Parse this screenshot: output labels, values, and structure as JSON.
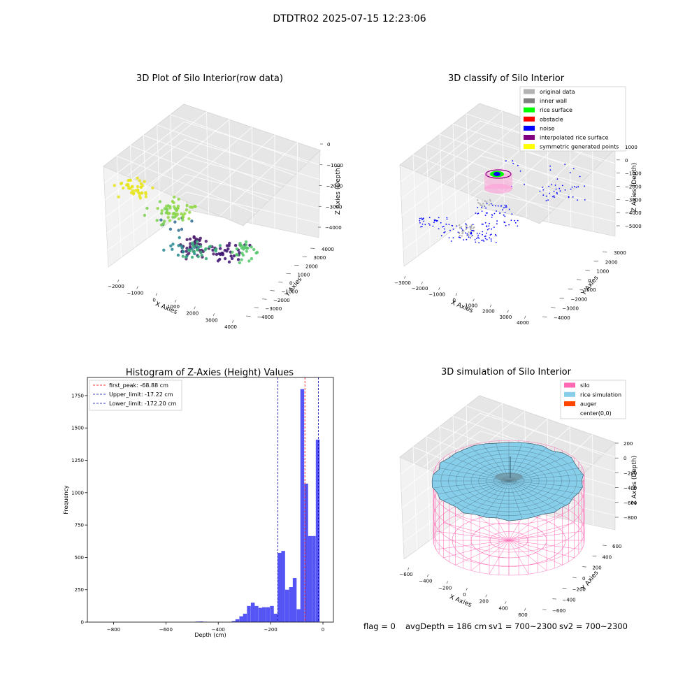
{
  "figure": {
    "suptitle": "DTDTR02 2025-07-15 12:23:06"
  },
  "chart_data": [
    {
      "type": "scatter",
      "title": "3D Plot of Silo Interior(row data)",
      "xlabel": "X Axies",
      "ylabel": "Y Axies",
      "zlabel": "Z Axies (Depth)",
      "x_ticks": [
        "−2000",
        "−1000",
        "0",
        "1000",
        "2000",
        "3000",
        "4000"
      ],
      "y_ticks": [
        "4000",
        "3000",
        "2000",
        "1000",
        "0",
        "−1000",
        "−2000",
        "−3000",
        "−4000"
      ],
      "z_ticks": [
        "0",
        "−1000",
        "−2000",
        "−3000",
        "−4000"
      ],
      "grid": true,
      "colormap": "viridis",
      "clusters": [
        {
          "x": -2300,
          "y": -1500,
          "z": -4200,
          "count": 8,
          "color": "#2f6b8e"
        },
        {
          "x": -1000,
          "y": -600,
          "z": -4300,
          "count": 40,
          "color": "#481668"
        },
        {
          "x": -200,
          "y": -1200,
          "z": -4400,
          "count": 30,
          "color": "#3b0f70"
        },
        {
          "x": -900,
          "y": 300,
          "z": -3800,
          "count": 18,
          "color": "#24878e"
        },
        {
          "x": 300,
          "y": 800,
          "z": -3300,
          "count": 26,
          "color": "#3aaa76"
        },
        {
          "x": -500,
          "y": 1500,
          "z": -1800,
          "count": 22,
          "color": "#7ad151"
        },
        {
          "x": 500,
          "y": 2200,
          "z": -1100,
          "count": 34,
          "color": "#8fd744"
        },
        {
          "x": 2600,
          "y": 1700,
          "z": -2200,
          "count": 26,
          "color": "#52c569"
        },
        {
          "x": -600,
          "y": 2800,
          "z": -300,
          "count": 40,
          "color": "#e6e419"
        }
      ]
    },
    {
      "type": "scatter",
      "title": "3D classify of Silo Interior",
      "xlabel": "X Axies",
      "ylabel": "Y Axies",
      "zlabel": "Z Axies (Depth)",
      "x_ticks": [
        "−3000",
        "−2000",
        "−1000",
        "0",
        "1000",
        "2000",
        "3000",
        "4000"
      ],
      "y_ticks": [
        "3000",
        "2000",
        "1000",
        "0",
        "−1000",
        "−2000",
        "−3000",
        "−4000"
      ],
      "z_ticks": [
        "1000",
        "0",
        "−1000",
        "−2000",
        "−3000",
        "−4000",
        "−5000"
      ],
      "grid": true,
      "legend": {
        "location": "top-right",
        "entries": [
          {
            "label": "original data",
            "color": "#b3b3b3"
          },
          {
            "label": "inner wall",
            "color": "#808080"
          },
          {
            "label": "rice surface",
            "color": "#00ff00"
          },
          {
            "label": "obstacle",
            "color": "#ff0000"
          },
          {
            "label": "noise",
            "color": "#0000ff"
          },
          {
            "label": "interpolated rice surface",
            "color": "#800080"
          },
          {
            "label": "symmetric generated points",
            "color": "#ffff00"
          }
        ]
      }
    },
    {
      "type": "bar",
      "title": "Histogram of Z-Axies (Height) Values",
      "xlabel": "Depth (cm)",
      "ylabel": "Frequency",
      "xlim": [
        -900,
        40
      ],
      "ylim": [
        0,
        1890
      ],
      "x_ticks": [
        -800,
        -600,
        -400,
        -200,
        0
      ],
      "y_ticks": [
        0,
        250,
        500,
        750,
        1000,
        1250,
        1500,
        1750
      ],
      "bin_width": 14.6,
      "bins": [
        {
          "x": -480,
          "value": 4
        },
        {
          "x": -465,
          "value": 5
        },
        {
          "x": -450,
          "value": 3
        },
        {
          "x": -341,
          "value": 8
        },
        {
          "x": -327,
          "value": 22
        },
        {
          "x": -312,
          "value": 45
        },
        {
          "x": -298,
          "value": 65
        },
        {
          "x": -283,
          "value": 125
        },
        {
          "x": -268,
          "value": 150
        },
        {
          "x": -254,
          "value": 125
        },
        {
          "x": -239,
          "value": 110
        },
        {
          "x": -225,
          "value": 115
        },
        {
          "x": -210,
          "value": 115
        },
        {
          "x": -195,
          "value": 125
        },
        {
          "x": -181,
          "value": 65
        },
        {
          "x": -166,
          "value": 535
        },
        {
          "x": -152,
          "value": 550
        },
        {
          "x": -137,
          "value": 250
        },
        {
          "x": -122,
          "value": 270
        },
        {
          "x": -108,
          "value": 340
        },
        {
          "x": -93,
          "value": 100
        },
        {
          "x": -79,
          "value": 1800
        },
        {
          "x": -64,
          "value": 1070
        },
        {
          "x": -50,
          "value": 665
        },
        {
          "x": -35,
          "value": 665
        },
        {
          "x": -20,
          "value": 1410
        }
      ],
      "bar_color": "#5555f5",
      "vlines": [
        {
          "x": -68.88,
          "color": "#ff0000",
          "label": "first_peak: -68.88 cm"
        },
        {
          "x": -17.22,
          "color": "#0000aa",
          "label": "Upper_limit: -17.22 cm"
        },
        {
          "x": -172.2,
          "color": "#0000aa",
          "label": "Lower_limit: -172.20 cm"
        }
      ],
      "legend": "top-left"
    },
    {
      "type": "surface",
      "title": "3D simulation of Silo Interior",
      "xlabel": "X Axies",
      "ylabel": "Y Axies",
      "zlabel": "Z Axies (Depth)",
      "x_ticks": [
        "−600",
        "−400",
        "−200",
        "0",
        "200",
        "400",
        "600"
      ],
      "y_ticks": [
        "600",
        "400",
        "200",
        "0",
        "−200",
        "−400",
        "−600"
      ],
      "z_ticks": [
        "200",
        "0",
        "−200",
        "−400",
        "−600",
        "−800"
      ],
      "grid": true,
      "legend": {
        "location": "top-right",
        "entries": [
          {
            "label": "silo",
            "color": "#ff69b4"
          },
          {
            "label": "rice simulation",
            "color": "#87ceeb"
          },
          {
            "label": "auger",
            "color": "#ff4500"
          },
          {
            "label": "center(0,0)",
            "color": ""
          }
        ]
      }
    }
  ],
  "footer": {
    "flag": "flag = 0",
    "avg": "avgDepth = 186 cm",
    "sv1": "sv1 = 700~2300",
    "sv2": "sv2 = 700~2300"
  }
}
